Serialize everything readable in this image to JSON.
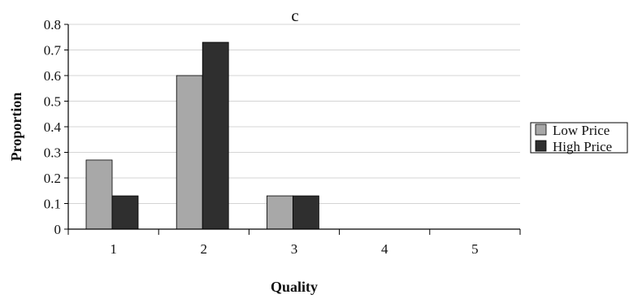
{
  "chart_data": {
    "type": "bar",
    "title": "c",
    "xlabel": "Quality",
    "ylabel": "Proportion",
    "categories": [
      "1",
      "2",
      "3",
      "4",
      "5"
    ],
    "series": [
      {
        "name": "Low Price",
        "values": [
          0.27,
          0.6,
          0.13,
          0,
          0
        ],
        "color": "#a8a8a8"
      },
      {
        "name": "High Price",
        "values": [
          0.13,
          0.73,
          0.13,
          0,
          0
        ],
        "color": "#2f2f2f"
      }
    ],
    "ylim": [
      0,
      0.8
    ],
    "yticks": [
      "0",
      "0.1",
      "0.2",
      "0.3",
      "0.4",
      "0.5",
      "0.6",
      "0.7",
      "0.8"
    ],
    "grid": true,
    "legend_position": "right"
  }
}
